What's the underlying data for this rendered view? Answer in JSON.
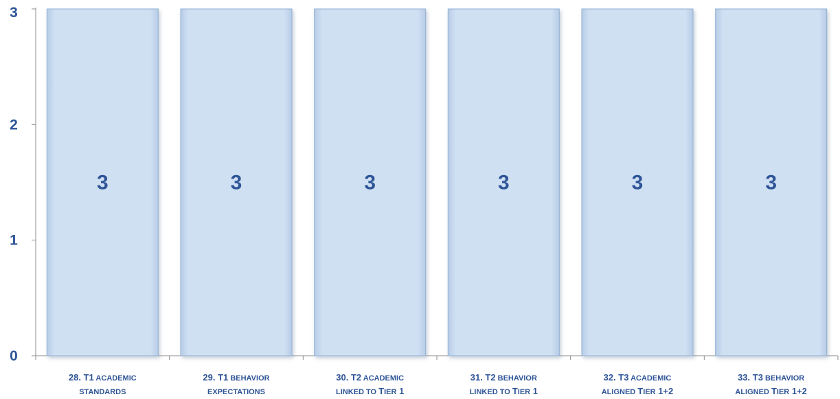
{
  "chart_data": {
    "type": "bar",
    "title": "",
    "xlabel": "",
    "ylabel": "",
    "ylim": [
      0,
      3
    ],
    "yticks": [
      "0",
      "1",
      "2",
      "3"
    ],
    "grid": false,
    "legend": "none",
    "categories": [
      {
        "line1": [
          [
            "28. T1",
            false
          ],
          [
            " ACADEMIC",
            true
          ]
        ],
        "line2": [
          [
            "STANDARDS",
            true
          ]
        ]
      },
      {
        "line1": [
          [
            "29. T1",
            false
          ],
          [
            " BEHAVIOR",
            true
          ]
        ],
        "line2": [
          [
            "EXPECTATIONS",
            true
          ]
        ]
      },
      {
        "line1": [
          [
            "30. T2",
            false
          ],
          [
            " ACADEMIC",
            true
          ]
        ],
        "line2": [
          [
            "LINKED TO ",
            true
          ],
          [
            "T",
            false
          ],
          [
            "IER",
            true
          ],
          [
            " 1",
            false
          ]
        ]
      },
      {
        "line1": [
          [
            "31. T2",
            false
          ],
          [
            " BEHAVIOR",
            true
          ]
        ],
        "line2": [
          [
            "LINKED TO ",
            true
          ],
          [
            "T",
            false
          ],
          [
            "IER",
            true
          ],
          [
            " 1",
            false
          ]
        ]
      },
      {
        "line1": [
          [
            "32. T3",
            false
          ],
          [
            " ACADEMIC",
            true
          ]
        ],
        "line2": [
          [
            "ALIGNED ",
            true
          ],
          [
            "T",
            false
          ],
          [
            "IER",
            true
          ],
          [
            " 1+2",
            false
          ]
        ]
      },
      {
        "line1": [
          [
            "33. T3",
            false
          ],
          [
            " BEHAVIOR",
            true
          ]
        ],
        "line2": [
          [
            "ALIGNED ",
            true
          ],
          [
            "T",
            false
          ],
          [
            "IER",
            true
          ],
          [
            " 1+2",
            false
          ]
        ]
      }
    ],
    "values": [
      3,
      3,
      3,
      3,
      3,
      3
    ],
    "data_labels": [
      "3",
      "3",
      "3",
      "3",
      "3",
      "3"
    ],
    "colors": {
      "bar_fill": "#c9dcf2",
      "bar_edge": "#93b1d5",
      "text": "#2f5597",
      "axis": "#8c8c8c"
    }
  }
}
